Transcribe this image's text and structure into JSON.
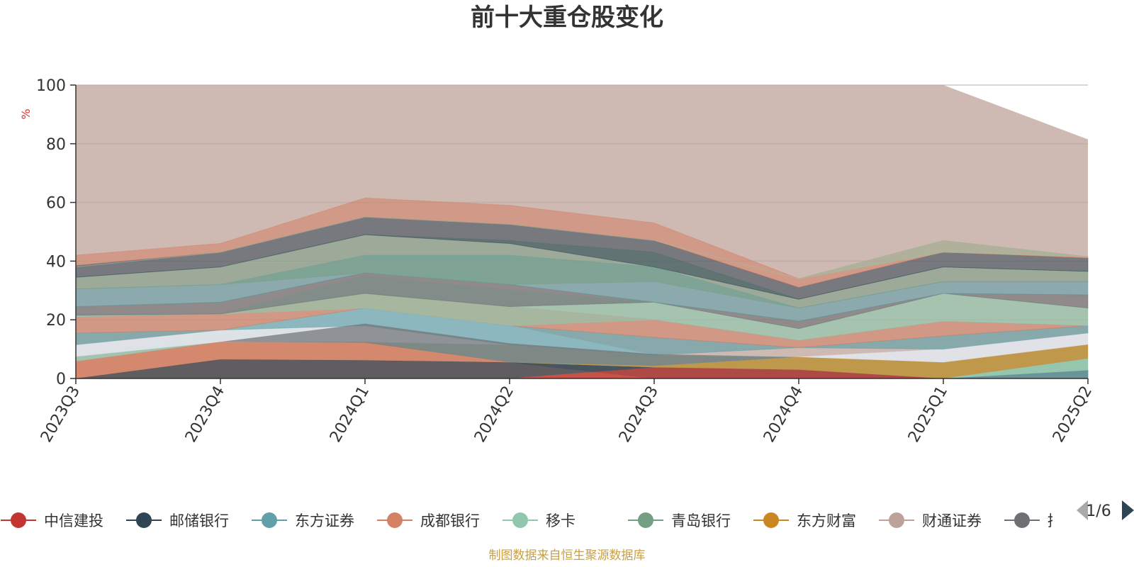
{
  "page_title": "前十大重仓股变化",
  "source_note": "制图数据来自恒生聚源数据库",
  "legend_pager": {
    "label": "1/6",
    "prev_icon": "triangle-left-icon",
    "next_icon": "triangle-right-icon"
  },
  "chart_data": {
    "type": "area",
    "title": "前十大重仓股变化",
    "ylabel": "%",
    "xlabel": "",
    "ylim": [
      0,
      100
    ],
    "yticks": [
      0,
      20,
      40,
      60,
      80,
      100
    ],
    "grid": true,
    "stacked": true,
    "legend_position": "bottom",
    "categories": [
      "2023Q3",
      "2023Q4",
      "2024Q1",
      "2024Q2",
      "2024Q3",
      "2024Q4",
      "2025Q1",
      "2025Q2"
    ],
    "series": [
      {
        "name": "中信建投",
        "color": "#c23531",
        "values": [
          0,
          0,
          0,
          0,
          3.8,
          3.0,
          0,
          0
        ]
      },
      {
        "name": "邮储银行",
        "color": "#2f4554",
        "values": [
          0,
          6.5,
          6.2,
          5.5,
          0,
          0,
          0,
          0
        ]
      },
      {
        "name": "东方证券",
        "color": "#61a0a8",
        "values": [
          0,
          0,
          0,
          0,
          0,
          0,
          0,
          2.8
        ]
      },
      {
        "name": "成都银行",
        "color": "#d48265",
        "values": [
          5.8,
          6.0,
          6.0,
          0,
          0,
          0,
          0,
          0
        ]
      },
      {
        "name": "移卡",
        "color": "#91c7ae",
        "values": [
          0,
          0,
          0,
          0,
          0,
          0,
          0,
          4.0
        ]
      },
      {
        "name": "青岛银行",
        "color": "#749f83",
        "values": [
          0,
          0,
          0,
          0,
          0,
          0,
          0,
          0
        ]
      },
      {
        "name": "东方财富",
        "color": "#ca8622",
        "values": [
          0,
          0,
          0,
          0,
          0.5,
          4.3,
          5.5,
          4.8
        ]
      },
      {
        "name": "财通证券",
        "color": "#bda29a",
        "values": [
          0,
          0,
          0,
          0,
          0,
          0,
          0,
          0
        ]
      },
      {
        "name": "招商银行",
        "color": "#6e7074",
        "values": [
          0,
          0,
          6.5,
          6.5,
          4.0,
          0,
          0,
          0
        ]
      }
    ],
    "visible_area_levels": {
      "boundaries_2023Q3": [
        0,
        5.8,
        7.5,
        11.5,
        15.5,
        18.5,
        21.5,
        24.5,
        30.5,
        34.5,
        38.5,
        42,
        100
      ],
      "top_envelope": [
        100,
        100,
        100,
        100,
        100,
        100,
        100,
        81.5
      ]
    }
  }
}
